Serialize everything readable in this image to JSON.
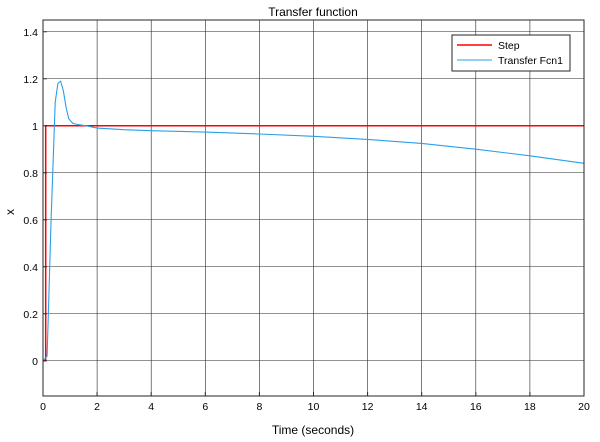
{
  "chart_data": {
    "type": "line",
    "title": "Transfer function",
    "xlabel": "Time (seconds)",
    "ylabel": "x",
    "xlim": [
      0,
      20
    ],
    "ylim": [
      -0.15,
      1.45
    ],
    "xticks": [
      0,
      2,
      4,
      6,
      8,
      10,
      12,
      14,
      16,
      18,
      20
    ],
    "yticks": [
      0,
      0.2,
      0.4,
      0.6,
      0.8,
      1,
      1.2,
      1.4
    ],
    "xtick_labels": [
      "0",
      "2",
      "4",
      "6",
      "8",
      "10",
      "12",
      "14",
      "16",
      "18",
      "20"
    ],
    "ytick_labels": [
      "0",
      "0.2",
      "0.4",
      "0.6",
      "0.8",
      "1",
      "1.2",
      "1.4"
    ],
    "grid": true,
    "legend_position": "top-right",
    "series": [
      {
        "name": "Step",
        "color": "#ff0000",
        "x": [
          0,
          0.1,
          0.1,
          20
        ],
        "y": [
          0,
          0,
          1,
          1
        ]
      },
      {
        "name": "Transfer Fcn1",
        "color": "#2a9fe8",
        "x": [
          0,
          0.15,
          0.3,
          0.45,
          0.55,
          0.65,
          0.75,
          0.85,
          0.95,
          1.1,
          1.3,
          1.6,
          2,
          3,
          4,
          6,
          8,
          10,
          12,
          14,
          16,
          18,
          20
        ],
        "y": [
          0,
          0.02,
          0.6,
          1.1,
          1.18,
          1.19,
          1.15,
          1.08,
          1.03,
          1.01,
          1.005,
          1.0,
          0.99,
          0.983,
          0.979,
          0.973,
          0.965,
          0.955,
          0.942,
          0.925,
          0.9,
          0.872,
          0.84
        ]
      }
    ]
  }
}
